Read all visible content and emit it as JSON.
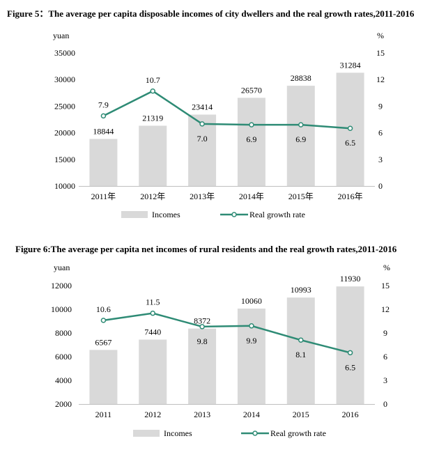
{
  "chart_data": [
    {
      "id": "fig5",
      "type": "bar",
      "title": "Figure 5：The average per capita disposable incomes of city dwellers and the real growth rates,2011-2016",
      "categories": [
        "2011年",
        "2012年",
        "2013年",
        "2014年",
        "2015年",
        "2016年"
      ],
      "y_unit": "yuan",
      "y2_unit": "%",
      "ylim": [
        10000,
        35000
      ],
      "yticks": [
        "10000",
        "15000",
        "20000",
        "25000",
        "30000",
        "35000"
      ],
      "y2lim": [
        0,
        15
      ],
      "y2ticks": [
        "0",
        "3",
        "6",
        "9",
        "12",
        "15"
      ],
      "series": [
        {
          "name": "Incomes",
          "kind": "bar",
          "axis": "left",
          "color": "#d9d9d9",
          "values": [
            18844,
            21319,
            23414,
            26570,
            28838,
            31284
          ],
          "labels": [
            "18844",
            "21319",
            "23414",
            "26570",
            "28838",
            "31284"
          ]
        },
        {
          "name": "Real growth rate",
          "kind": "line",
          "axis": "right",
          "color": "#2e8b75",
          "values": [
            7.9,
            10.7,
            7.0,
            6.9,
            6.9,
            6.5
          ],
          "labels": [
            "7.9",
            "10.7",
            "7.0",
            "6.9",
            "6.9",
            "6.5"
          ]
        }
      ],
      "legend": {
        "position": "bottom",
        "items": [
          "Incomes",
          "Real growth rate"
        ]
      },
      "grid": false
    },
    {
      "id": "fig6",
      "type": "bar",
      "title": "Figure 6:The average per capita net incomes of rural residents and the real growth rates,2011-2016",
      "categories": [
        "2011",
        "2012",
        "2013",
        "2014",
        "2015",
        "2016"
      ],
      "y_unit": "yuan",
      "y2_unit": "%",
      "ylim": [
        2000,
        12000
      ],
      "yticks": [
        "2000",
        "4000",
        "6000",
        "8000",
        "10000",
        "12000"
      ],
      "y2lim": [
        0,
        15
      ],
      "y2ticks": [
        "0",
        "3",
        "6",
        "9",
        "12",
        "15"
      ],
      "series": [
        {
          "name": "Incomes",
          "kind": "bar",
          "axis": "left",
          "color": "#d9d9d9",
          "values": [
            6567,
            7440,
            8372,
            10060,
            10993,
            11930
          ],
          "labels": [
            "6567",
            "7440",
            "8372",
            "10060",
            "10993",
            "11930"
          ]
        },
        {
          "name": "Real growth rate",
          "kind": "line",
          "axis": "right",
          "color": "#2e8b75",
          "values": [
            10.6,
            11.5,
            9.8,
            9.9,
            8.1,
            6.5
          ],
          "labels": [
            "10.6",
            "11.5",
            "9.8",
            "9.9",
            "8.1",
            "6.5"
          ]
        }
      ],
      "legend": {
        "position": "bottom",
        "items": [
          "Incomes",
          "Real growth rate"
        ]
      },
      "grid": false
    }
  ]
}
